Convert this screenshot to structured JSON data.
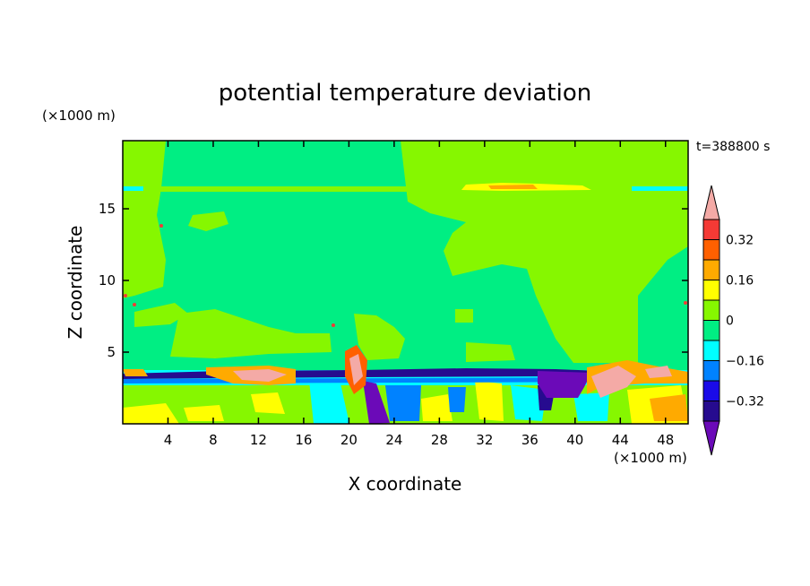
{
  "chart_data": {
    "type": "heatmap",
    "title": "potential temperature deviation",
    "xlabel": "X coordinate",
    "ylabel": "Z coordinate",
    "x_unit": "(×1000 m)",
    "y_unit": "(×1000 m)",
    "time_label": "t=388800 s",
    "xlim": [
      0,
      50
    ],
    "ylim": [
      0,
      19.75
    ],
    "x_ticks": [
      4,
      8,
      12,
      16,
      20,
      24,
      28,
      32,
      36,
      40,
      44,
      48
    ],
    "y_ticks": [
      5,
      10,
      15
    ],
    "colorbar": {
      "levels": [
        -0.4,
        -0.32,
        -0.24,
        -0.16,
        -0.08,
        0,
        0.08,
        0.16,
        0.24,
        0.32,
        0.4
      ],
      "labels": [
        "0.32",
        "0.16",
        "0",
        "−0.16",
        "−0.32"
      ],
      "label_values": [
        0.32,
        0.16,
        0,
        -0.16,
        -0.32
      ],
      "colors_top_to_bottom": [
        "#f4aaa6",
        "#f43a35",
        "#ff6000",
        "#ffaa00",
        "#ffff00",
        "#86f700",
        "#00ee83",
        "#00ffff",
        "#0082ff",
        "#1a0be8",
        "#260b8f",
        "#6b0ab8"
      ]
    }
  }
}
